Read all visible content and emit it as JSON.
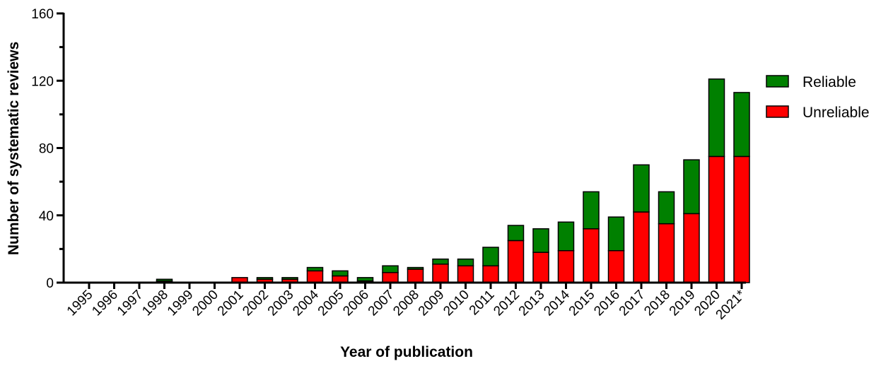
{
  "chart_data": {
    "type": "bar",
    "stacked": true,
    "categories": [
      "1995",
      "1996",
      "1997",
      "1998",
      "1999",
      "2000",
      "2001",
      "2002",
      "2003",
      "2004",
      "2005",
      "2006",
      "2007",
      "2008",
      "2009",
      "2010",
      "2011",
      "2012",
      "2013",
      "2014",
      "2015",
      "2016",
      "2017",
      "2018",
      "2019",
      "2020",
      "2021*"
    ],
    "series": [
      {
        "name": "Unreliable",
        "color": "#ff0000",
        "values": [
          0,
          0,
          0,
          1,
          0,
          0,
          3,
          2,
          2,
          7,
          4,
          1,
          6,
          8,
          11,
          10,
          10,
          25,
          18,
          19,
          32,
          19,
          42,
          35,
          41,
          75,
          75
        ]
      },
      {
        "name": "Reliable",
        "color": "#008000",
        "values": [
          0,
          0,
          0,
          1,
          0,
          0,
          0,
          1,
          1,
          2,
          3,
          2,
          4,
          1,
          3,
          4,
          11,
          9,
          14,
          17,
          22,
          20,
          28,
          19,
          32,
          46,
          38
        ]
      }
    ],
    "xlabel": "Year of publication",
    "ylabel": "Number of systematic reviews",
    "ylim": [
      0,
      160
    ],
    "yticks": [
      0,
      40,
      80,
      120,
      160
    ],
    "legend": {
      "placement": "right",
      "entries": [
        "Reliable",
        "Unreliable"
      ]
    },
    "grid": false
  }
}
